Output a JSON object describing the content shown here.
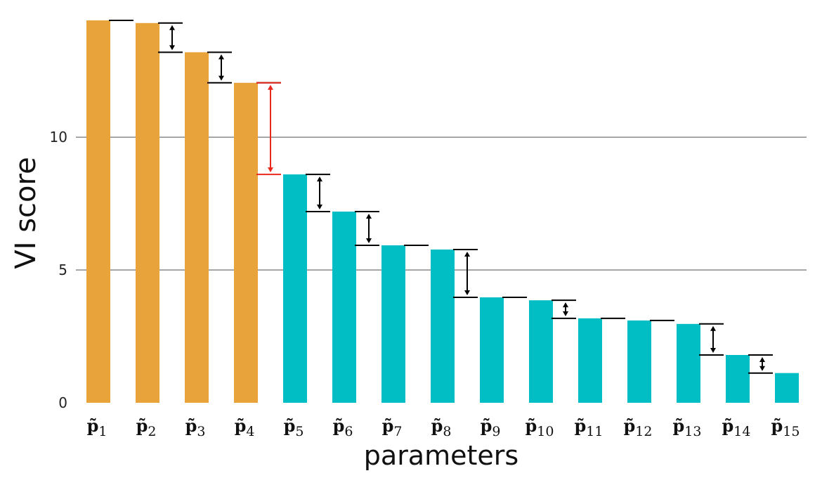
{
  "chart_data": {
    "type": "bar",
    "xlabel": "parameters",
    "ylabel": "VI score",
    "ylim": [
      0,
      14.4
    ],
    "yticks": [
      0,
      5,
      10
    ],
    "grid": true,
    "categories": [
      {
        "base": "p̃",
        "sub": "1"
      },
      {
        "base": "p̃",
        "sub": "2"
      },
      {
        "base": "p̃",
        "sub": "3"
      },
      {
        "base": "p̃",
        "sub": "4"
      },
      {
        "base": "p̃",
        "sub": "5"
      },
      {
        "base": "p̃",
        "sub": "6"
      },
      {
        "base": "p̃",
        "sub": "7"
      },
      {
        "base": "p̃",
        "sub": "8"
      },
      {
        "base": "p̃",
        "sub": "9"
      },
      {
        "base": "p̃",
        "sub": "10"
      },
      {
        "base": "p̃",
        "sub": "11"
      },
      {
        "base": "p̃",
        "sub": "12"
      },
      {
        "base": "p̃",
        "sub": "13"
      },
      {
        "base": "p̃",
        "sub": "14"
      },
      {
        "base": "p̃",
        "sub": "15"
      }
    ],
    "values": [
      14.4,
      14.3,
      13.2,
      12.05,
      8.6,
      7.2,
      5.93,
      5.77,
      3.97,
      3.86,
      3.18,
      3.1,
      2.97,
      1.8,
      1.12
    ],
    "group_count": 4,
    "colors": {
      "group_a": "#E8A33A",
      "group_b": "#00BEC4",
      "gap_arrow": "#000000",
      "largest_gap_arrow": "#E8281B",
      "grid": "#7f7f7f"
    },
    "largest_gap_after_index": 3
  }
}
